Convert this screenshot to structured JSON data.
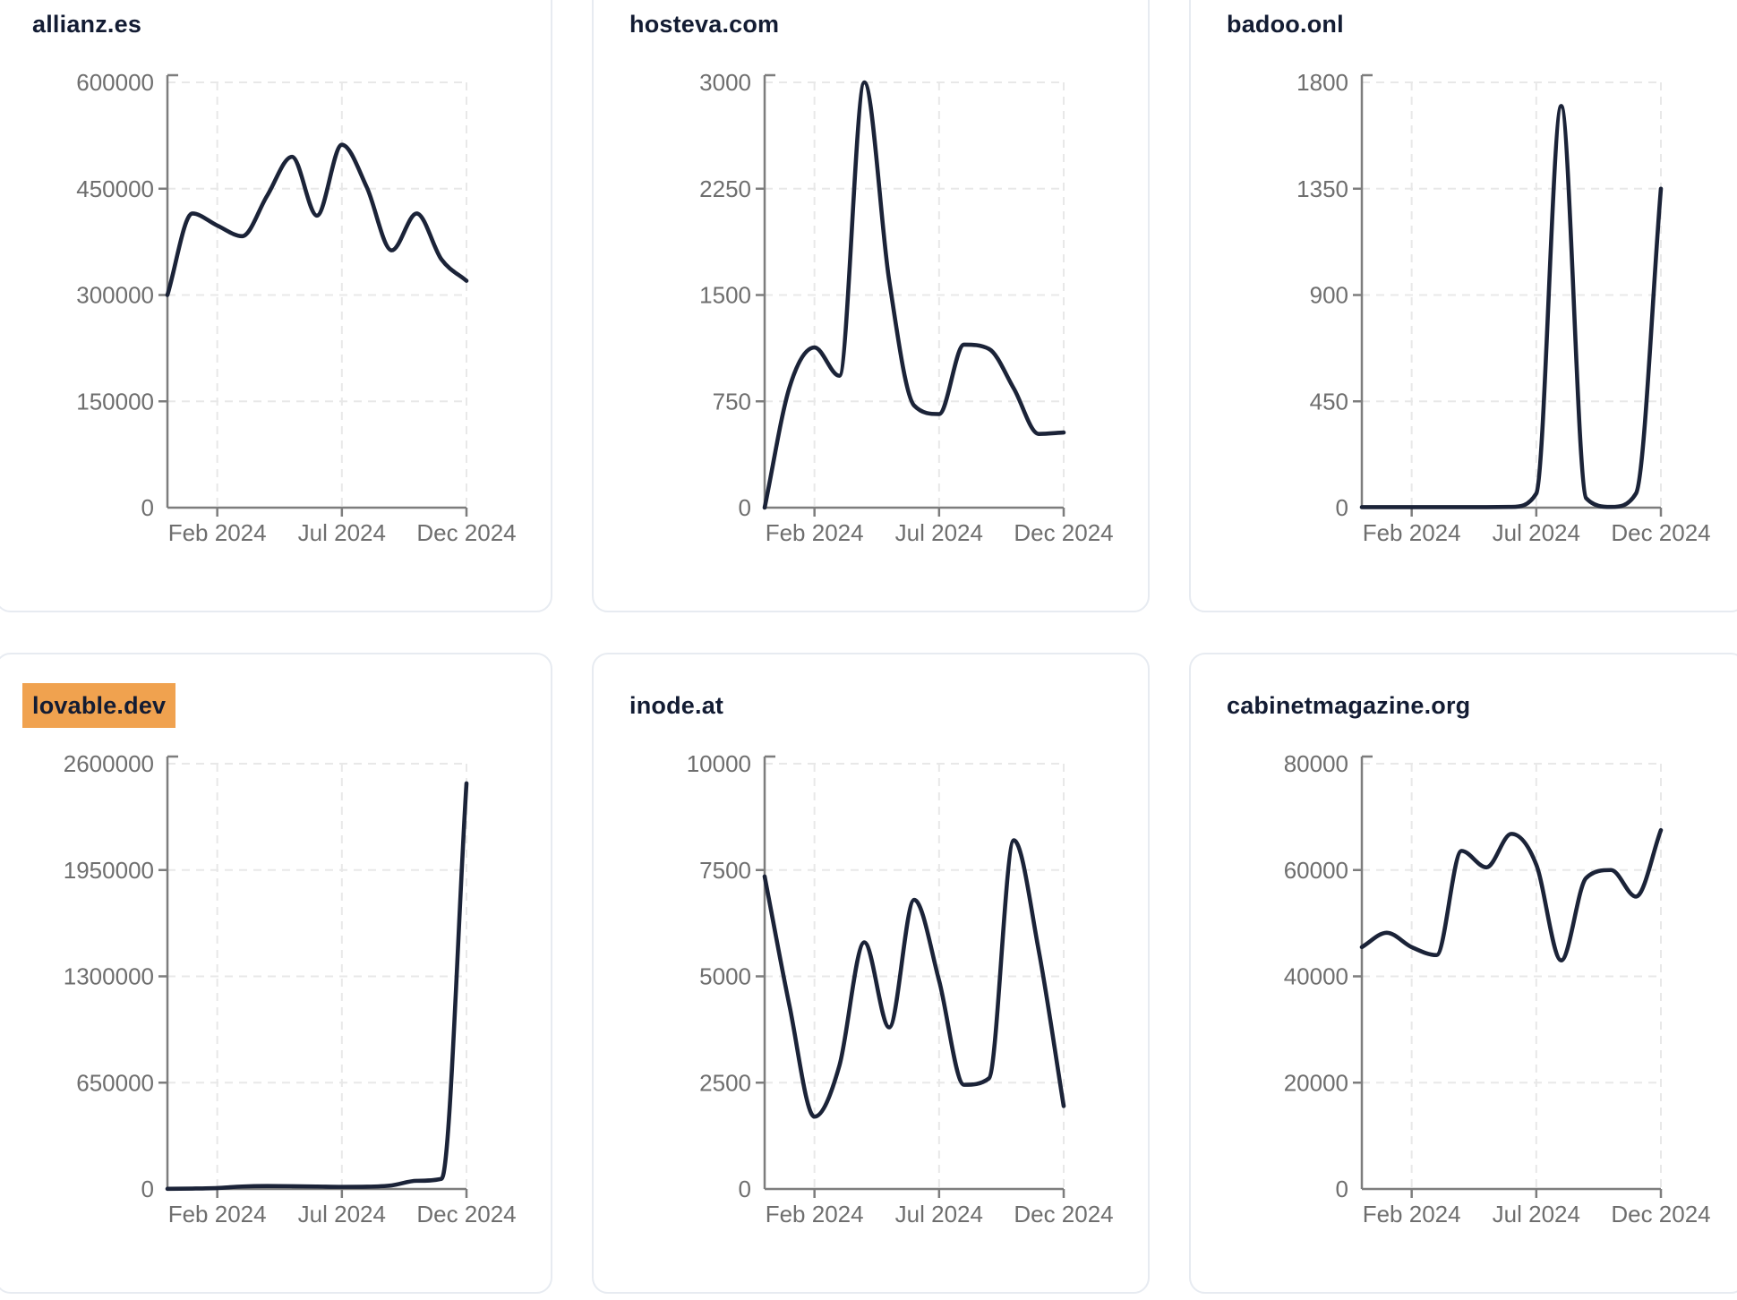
{
  "colors": {
    "line": "#1b2338",
    "title": "#131c33",
    "tick_label": "#6e6e6e",
    "axis": "#7d7d7d",
    "grid": "#e8e8e8",
    "card_border": "#e7ebf1",
    "card_background": "#ffffff",
    "page_background": "#ffffff",
    "highlight": "#f0a24f"
  },
  "chart_data": [
    {
      "type": "line",
      "title": "allianz.es",
      "highlighted": false,
      "x": [
        "Dec 2023",
        "Jan 2024",
        "Feb 2024",
        "Mar 2024",
        "Apr 2024",
        "May 2024",
        "Jun 2024",
        "Jul 2024",
        "Aug 2024",
        "Sep 2024",
        "Oct 2024",
        "Nov 2024",
        "Dec 2024"
      ],
      "values": [
        300000,
        415000,
        398000,
        383000,
        440000,
        495000,
        412000,
        512000,
        452000,
        363000,
        415000,
        350000,
        320000
      ],
      "ylim": [
        0,
        600000
      ],
      "y_ticks": [
        0,
        150000,
        300000,
        450000,
        600000
      ],
      "x_tick_labels": [
        "Feb 2024",
        "Jul 2024",
        "Dec 2024"
      ],
      "x_tick_indices": [
        2,
        7,
        12
      ],
      "grid": "dashed",
      "legend": "none"
    },
    {
      "type": "line",
      "title": "hosteva.com",
      "highlighted": false,
      "x": [
        "Dec 2023",
        "Jan 2024",
        "Feb 2024",
        "Mar 2024",
        "Apr 2024",
        "May 2024",
        "Jun 2024",
        "Jul 2024",
        "Aug 2024",
        "Sep 2024",
        "Oct 2024",
        "Nov 2024",
        "Dec 2024"
      ],
      "values": [
        0,
        850,
        1130,
        930,
        3000,
        1600,
        720,
        660,
        1150,
        1120,
        840,
        520,
        530
      ],
      "ylim": [
        0,
        3000
      ],
      "y_ticks": [
        0,
        750,
        1500,
        2250,
        3000
      ],
      "x_tick_labels": [
        "Feb 2024",
        "Jul 2024",
        "Dec 2024"
      ],
      "x_tick_indices": [
        2,
        7,
        12
      ],
      "grid": "dashed",
      "legend": "none"
    },
    {
      "type": "line",
      "title": "badoo.onl",
      "highlighted": false,
      "x": [
        "Dec 2023",
        "Jan 2024",
        "Feb 2024",
        "Mar 2024",
        "Apr 2024",
        "May 2024",
        "Jun 2024",
        "Jul 2024",
        "Aug 2024",
        "Sep 2024",
        "Oct 2024",
        "Nov 2024",
        "Dec 2024"
      ],
      "values": [
        2,
        2,
        2,
        2,
        2,
        2,
        3,
        60,
        1700,
        40,
        3,
        60,
        1350
      ],
      "ylim": [
        0,
        1800
      ],
      "y_ticks": [
        0,
        450,
        900,
        1350,
        1800
      ],
      "x_tick_labels": [
        "Feb 2024",
        "Jul 2024",
        "Dec 2024"
      ],
      "x_tick_indices": [
        2,
        7,
        12
      ],
      "grid": "dashed",
      "legend": "none"
    },
    {
      "type": "line",
      "title": "lovable.dev",
      "highlighted": true,
      "x": [
        "Dec 2023",
        "Jan 2024",
        "Feb 2024",
        "Mar 2024",
        "Apr 2024",
        "May 2024",
        "Jun 2024",
        "Jul 2024",
        "Aug 2024",
        "Sep 2024",
        "Oct 2024",
        "Nov 2024",
        "Dec 2024"
      ],
      "values": [
        1000,
        2500,
        6000,
        15000,
        18000,
        17000,
        15000,
        13000,
        14000,
        22000,
        50000,
        62000,
        2480000
      ],
      "ylim": [
        0,
        2600000
      ],
      "y_ticks": [
        0,
        650000,
        1300000,
        1950000,
        2600000
      ],
      "x_tick_labels": [
        "Feb 2024",
        "Jul 2024",
        "Dec 2024"
      ],
      "x_tick_indices": [
        2,
        7,
        12
      ],
      "grid": "dashed",
      "legend": "none"
    },
    {
      "type": "line",
      "title": "inode.at",
      "highlighted": false,
      "x": [
        "Dec 2023",
        "Jan 2024",
        "Feb 2024",
        "Mar 2024",
        "Apr 2024",
        "May 2024",
        "Jun 2024",
        "Jul 2024",
        "Aug 2024",
        "Sep 2024",
        "Oct 2024",
        "Nov 2024",
        "Dec 2024"
      ],
      "values": [
        7350,
        4300,
        1700,
        2900,
        5800,
        3800,
        6800,
        4900,
        2450,
        2600,
        8200,
        5600,
        1950
      ],
      "ylim": [
        0,
        10000
      ],
      "y_ticks": [
        0,
        2500,
        5000,
        7500,
        10000
      ],
      "x_tick_labels": [
        "Feb 2024",
        "Jul 2024",
        "Dec 2024"
      ],
      "x_tick_indices": [
        2,
        7,
        12
      ],
      "grid": "dashed",
      "legend": "none"
    },
    {
      "type": "line",
      "title": "cabinetmagazine.org",
      "highlighted": false,
      "x": [
        "Dec 2023",
        "Jan 2024",
        "Feb 2024",
        "Mar 2024",
        "Apr 2024",
        "May 2024",
        "Jun 2024",
        "Jul 2024",
        "Aug 2024",
        "Sep 2024",
        "Oct 2024",
        "Nov 2024",
        "Dec 2024"
      ],
      "values": [
        45500,
        48200,
        45500,
        44000,
        63600,
        60500,
        66800,
        61000,
        43000,
        58500,
        60000,
        55000,
        67500
      ],
      "ylim": [
        0,
        80000
      ],
      "y_ticks": [
        0,
        20000,
        40000,
        60000,
        80000
      ],
      "x_tick_labels": [
        "Feb 2024",
        "Jul 2024",
        "Dec 2024"
      ],
      "x_tick_indices": [
        2,
        7,
        12
      ],
      "grid": "dashed",
      "legend": "none"
    }
  ]
}
